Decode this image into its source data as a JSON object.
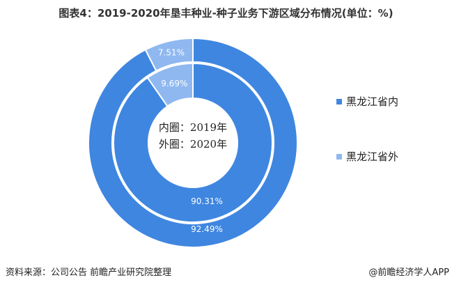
{
  "chart_data": {
    "type": "pie",
    "title": "图表4：2019-2020年垦丰种业-种子业务下游区域分布情况(单位：%)",
    "categories": [
      "黑龙江省内",
      "黑龙江省外"
    ],
    "series": [
      {
        "name": "2019年",
        "ring": "inner",
        "values": [
          90.31,
          9.69
        ],
        "labels": [
          "90.31%",
          "9.69%"
        ]
      },
      {
        "name": "2020年",
        "ring": "outer",
        "values": [
          92.49,
          7.51
        ],
        "labels": [
          "92.49%",
          "7.51%"
        ]
      }
    ],
    "colors": [
      "#3f86e0",
      "#8fb8f0"
    ],
    "center_text": [
      "内圈：2019年",
      "外圈：2020年"
    ],
    "legend_placement": "right"
  },
  "footer": {
    "source": "资料来源：公司公告 前瞻产业研究院整理",
    "brand": "@前瞻经济学人APP"
  }
}
